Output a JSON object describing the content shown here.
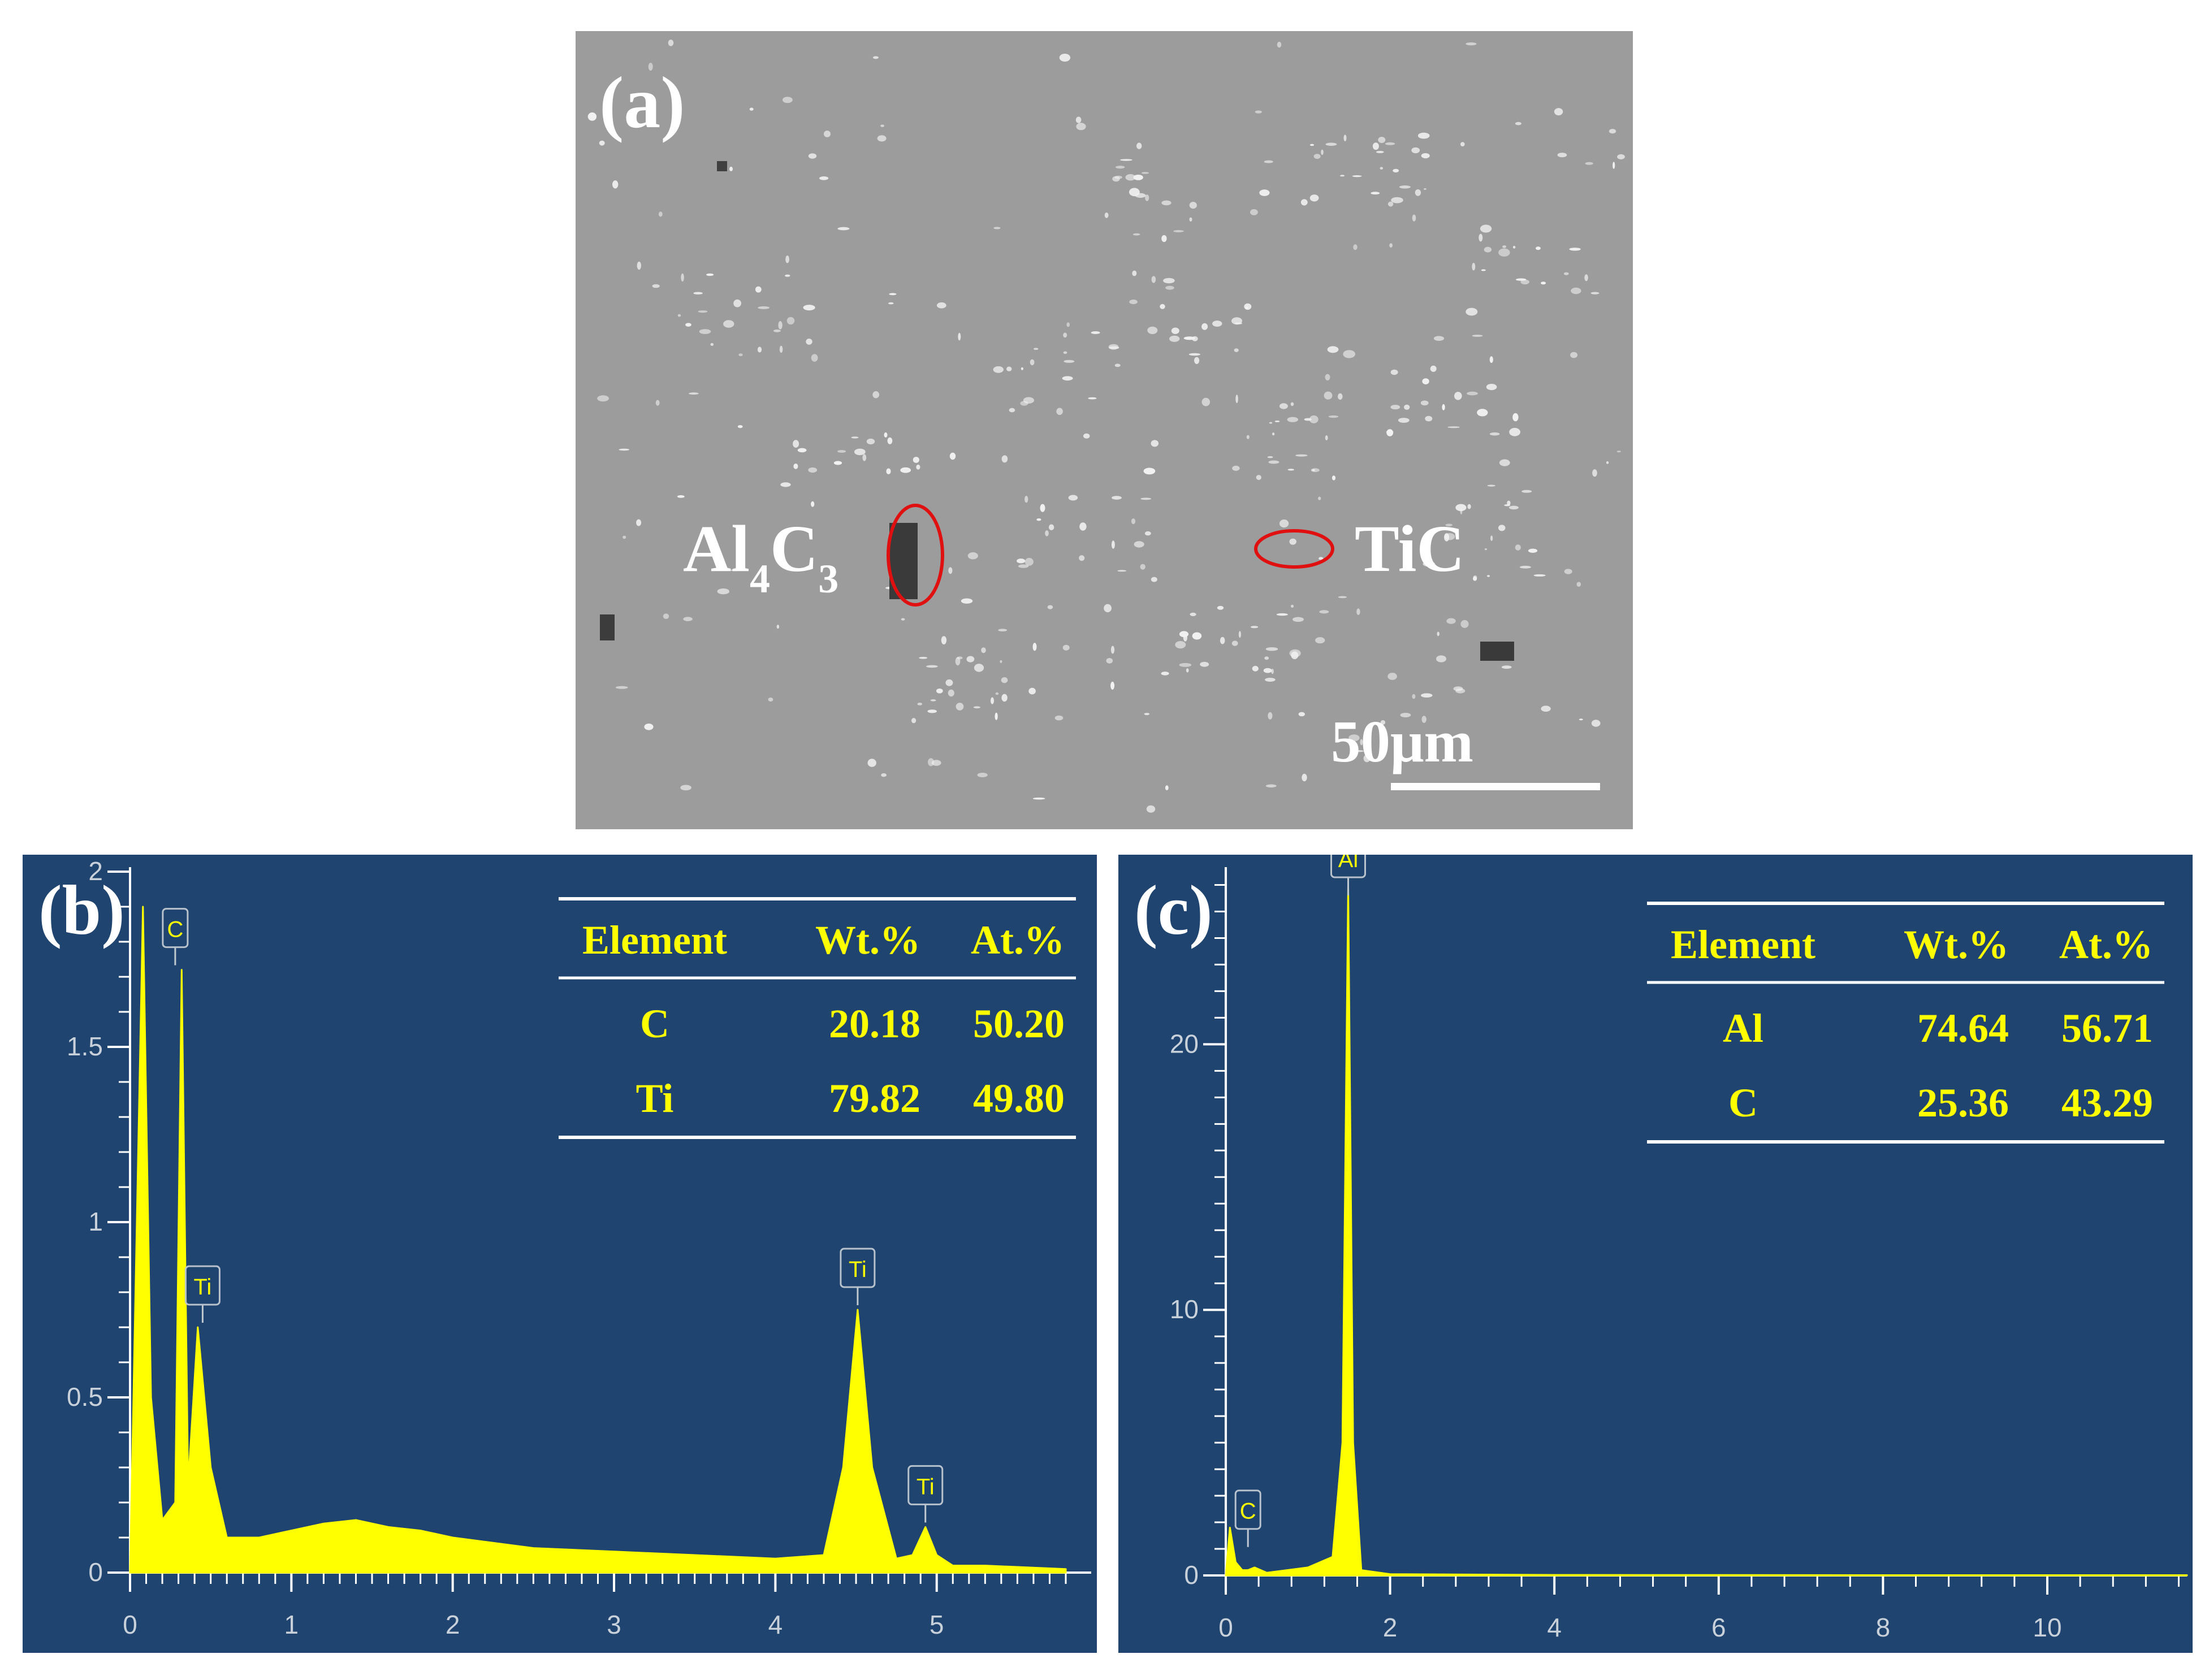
{
  "panel_a": {
    "label": "(a)",
    "phase_left": {
      "main": "Al",
      "sub1": "4",
      "mid": "C",
      "sub2": "3"
    },
    "phase_right": "TiC",
    "scale_bar": "50μm",
    "colors": {
      "background": "#9c9c9c",
      "particle": "#f2f2f2",
      "marker": "#e01010",
      "text": "#ffffff"
    }
  },
  "chart_data": [
    {
      "type": "line",
      "panel_label": "(b)",
      "x": [
        0,
        0.08,
        0.13,
        0.2,
        0.28,
        0.32,
        0.36,
        0.42,
        0.5,
        0.6,
        0.8,
        1.0,
        1.2,
        1.4,
        1.6,
        1.8,
        2.0,
        2.5,
        3.0,
        3.5,
        4.0,
        4.3,
        4.42,
        4.51,
        4.6,
        4.75,
        4.85,
        4.93,
        5.0,
        5.1,
        5.3,
        5.8
      ],
      "y": [
        0,
        1.9,
        0.5,
        0.15,
        0.2,
        1.72,
        0.25,
        0.7,
        0.3,
        0.1,
        0.1,
        0.12,
        0.14,
        0.15,
        0.13,
        0.12,
        0.1,
        0.07,
        0.06,
        0.05,
        0.04,
        0.05,
        0.3,
        0.75,
        0.3,
        0.04,
        0.05,
        0.13,
        0.05,
        0.02,
        0.02,
        0.01
      ],
      "xlim": [
        0,
        5.8
      ],
      "ylim": [
        0,
        2.0
      ],
      "x_ticks": [
        "0",
        "1",
        "2",
        "3",
        "4",
        "5"
      ],
      "y_ticks": [
        "0",
        "0.5",
        "1",
        "1.5",
        "2"
      ],
      "peak_labels": [
        {
          "text": "C",
          "x": 0.28,
          "y": 1.72
        },
        {
          "text": "Ti",
          "x": 0.45,
          "y": 0.7
        },
        {
          "text": "Ti",
          "x": 4.51,
          "y": 0.75
        },
        {
          "text": "Ti",
          "x": 4.93,
          "y": 0.13
        }
      ],
      "table": {
        "headers": [
          "Element",
          "Wt.%",
          "At.%"
        ],
        "rows": [
          [
            "C",
            "20.18",
            "50.20"
          ],
          [
            "Ti",
            "79.82",
            "49.80"
          ]
        ]
      },
      "colors": {
        "background": "#1f4470",
        "line": "#ffff00",
        "axis": "#ffffff",
        "tick_text": "#c8d0da",
        "table_text": "#ffff00"
      }
    },
    {
      "type": "line",
      "panel_label": "(c)",
      "x": [
        0,
        0.05,
        0.12,
        0.2,
        0.27,
        0.35,
        0.5,
        1.0,
        1.3,
        1.42,
        1.49,
        1.55,
        1.65,
        2.0,
        4.0,
        8.0,
        11.7
      ],
      "y": [
        0,
        1.8,
        0.5,
        0.2,
        0.2,
        0.3,
        0.1,
        0.3,
        0.7,
        5,
        26,
        5,
        0.2,
        0.05,
        0.02,
        0.01,
        0.01
      ],
      "xlim": [
        0,
        11.7
      ],
      "ylim": [
        0,
        26.5
      ],
      "x_ticks": [
        "0",
        "2",
        "4",
        "6",
        "8",
        "10"
      ],
      "y_ticks": [
        "0",
        "10",
        "20"
      ],
      "peak_labels": [
        {
          "text": "Al",
          "x": 1.49,
          "y": 26
        },
        {
          "text": "C",
          "x": 0.27,
          "y": 0.9
        }
      ],
      "table": {
        "headers": [
          "Element",
          "Wt.%",
          "At.%"
        ],
        "rows": [
          [
            "Al",
            "74.64",
            "56.71"
          ],
          [
            "C",
            "25.36",
            "43.29"
          ]
        ]
      },
      "colors": {
        "background": "#1f4470",
        "line": "#ffff00",
        "axis": "#ffffff",
        "tick_text": "#c8d0da",
        "table_text": "#ffff00"
      }
    }
  ]
}
